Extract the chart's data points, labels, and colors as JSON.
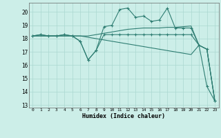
{
  "xlabel": "Humidex (Indice chaleur)",
  "bg_color": "#cceee8",
  "line_color": "#2e7d72",
  "grid_color": "#aad8d0",
  "xlim": [
    -0.5,
    23.5
  ],
  "ylim": [
    12.8,
    20.7
  ],
  "yticks": [
    13,
    14,
    15,
    16,
    17,
    18,
    19,
    20
  ],
  "xticks": [
    0,
    1,
    2,
    3,
    4,
    5,
    6,
    7,
    8,
    9,
    10,
    11,
    12,
    13,
    14,
    15,
    16,
    17,
    18,
    19,
    20,
    21,
    22,
    23
  ],
  "series_marked1": {
    "x": [
      0,
      1,
      2,
      3,
      4,
      5,
      6,
      7,
      8,
      9,
      10,
      11,
      12,
      13,
      14,
      15,
      16,
      17,
      18,
      19,
      20,
      21,
      22,
      23
    ],
    "y": [
      18.2,
      18.3,
      18.2,
      18.2,
      18.3,
      18.2,
      17.8,
      16.4,
      17.1,
      18.3,
      18.3,
      18.3,
      18.3,
      18.3,
      18.3,
      18.3,
      18.3,
      18.3,
      18.3,
      18.3,
      18.3,
      17.5,
      17.2,
      13.3
    ]
  },
  "series_marked2": {
    "x": [
      0,
      1,
      2,
      3,
      4,
      5,
      6,
      7,
      8,
      9,
      10,
      11,
      12,
      13,
      14,
      15,
      16,
      17,
      18,
      19,
      20,
      21,
      22,
      23
    ],
    "y": [
      18.2,
      18.3,
      18.2,
      18.2,
      18.3,
      18.2,
      17.8,
      16.4,
      17.1,
      18.9,
      19.0,
      20.2,
      20.3,
      19.6,
      19.7,
      19.3,
      19.4,
      20.3,
      18.8,
      18.8,
      18.8,
      17.5,
      14.4,
      13.3
    ]
  },
  "series_plain1": {
    "x": [
      0,
      1,
      2,
      3,
      4,
      5,
      6,
      7,
      8,
      9,
      10,
      11,
      12,
      13,
      14,
      15,
      16,
      17,
      18,
      19,
      20,
      21,
      22,
      23
    ],
    "y": [
      18.2,
      18.2,
      18.2,
      18.2,
      18.2,
      18.2,
      18.2,
      18.2,
      18.3,
      18.4,
      18.5,
      18.6,
      18.7,
      18.75,
      18.8,
      18.8,
      18.8,
      18.85,
      18.85,
      18.9,
      18.95,
      17.5,
      17.2,
      13.3
    ]
  },
  "series_plain2": {
    "x": [
      0,
      1,
      2,
      3,
      4,
      5,
      6,
      7,
      8,
      9,
      10,
      11,
      12,
      13,
      14,
      15,
      16,
      17,
      18,
      19,
      20,
      21,
      22,
      23
    ],
    "y": [
      18.2,
      18.2,
      18.2,
      18.2,
      18.2,
      18.2,
      18.2,
      18.1,
      18.0,
      17.9,
      17.8,
      17.7,
      17.6,
      17.5,
      17.4,
      17.3,
      17.2,
      17.1,
      17.0,
      16.9,
      16.8,
      17.5,
      17.2,
      13.3
    ]
  }
}
